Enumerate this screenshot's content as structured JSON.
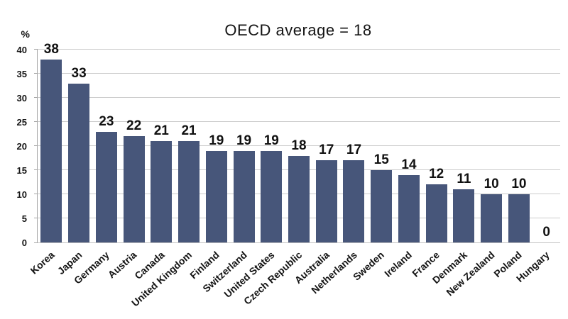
{
  "chart_data": {
    "type": "bar",
    "title": "OECD average = 18",
    "ylabel": "%",
    "xlabel": "",
    "categories": [
      "Korea",
      "Japan",
      "Germany",
      "Austria",
      "Canada",
      "United Kingdom",
      "Finland",
      "Switzerland",
      "United States",
      "Czech Republic",
      "Australia",
      "Netherlands",
      "Sweden",
      "Ireland",
      "France",
      "Denmark",
      "New Zealand",
      "Poland",
      "Hungary"
    ],
    "values": [
      38,
      33,
      23,
      22,
      21,
      21,
      19,
      19,
      19,
      18,
      17,
      17,
      15,
      14,
      12,
      11,
      10,
      10,
      0
    ],
    "ylim": [
      0,
      40
    ],
    "yticks": [
      0,
      5,
      10,
      15,
      20,
      25,
      30,
      35,
      40
    ],
    "grid": true,
    "legend_position": "none",
    "bar_color": "#47567A",
    "grid_color": "#CCCCCC",
    "axis_color": "#A6A6A6",
    "text_color": "#141414"
  }
}
